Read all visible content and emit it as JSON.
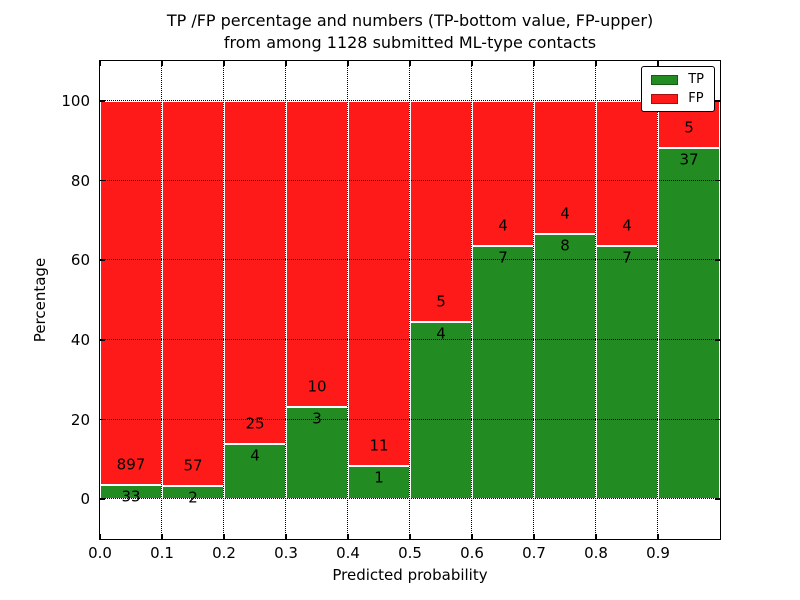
{
  "chart_data": {
    "type": "bar",
    "stacked": true,
    "title_line1": "TP /FP percentage and numbers (TP-bottom value, FP-upper)",
    "title_line2": "from among 1128 submitted ML-type contacts",
    "xlabel": "Predicted probability",
    "ylabel": "Percentage",
    "xlim": [
      0.0,
      1.0
    ],
    "ylim": [
      -10,
      110
    ],
    "xtick_labels": [
      "0.0",
      "0.1",
      "0.2",
      "0.3",
      "0.4",
      "0.5",
      "0.6",
      "0.7",
      "0.8",
      "0.9"
    ],
    "ytick_values": [
      0,
      20,
      40,
      60,
      80,
      100
    ],
    "grid": true,
    "grid_style": "dotted",
    "legend_position": "upper-right",
    "bin_edges": [
      0.0,
      0.1,
      0.2,
      0.3,
      0.4,
      0.5,
      0.6,
      0.7,
      0.8,
      0.9,
      1.0
    ],
    "series": [
      {
        "name": "TP",
        "color": "#228b22",
        "counts": [
          33,
          2,
          4,
          3,
          1,
          4,
          7,
          8,
          7,
          37
        ]
      },
      {
        "name": "FP",
        "color": "#ff1a1a",
        "counts": [
          897,
          57,
          25,
          10,
          11,
          5,
          4,
          4,
          4,
          5
        ]
      }
    ],
    "tp_percentages": [
      3.5,
      3.4,
      13.8,
      23.1,
      8.3,
      44.4,
      63.6,
      66.7,
      63.6,
      88.1
    ],
    "total_contacts": 1128,
    "bar_edge_color": "#ffffff",
    "text_color": "#000000"
  }
}
